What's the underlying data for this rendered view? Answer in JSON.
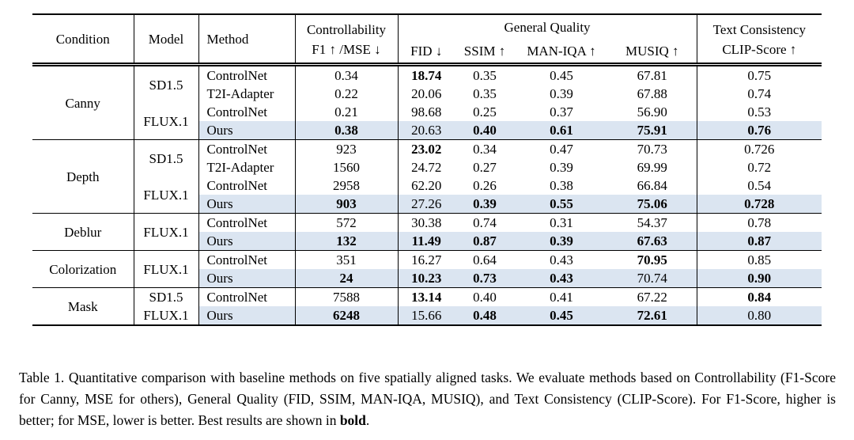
{
  "colors": {
    "background": "#ffffff",
    "text": "#000000",
    "rule": "#000000",
    "highlight_row": "#dbe5f1"
  },
  "table": {
    "headers": {
      "condition": "Condition",
      "model": "Model",
      "method": "Method",
      "controllability_line1": "Controllability",
      "controllability_line2": "F1 ↑ /MSE ↓",
      "general_quality": "General Quality",
      "fid": "FID ↓",
      "ssim": "SSIM ↑",
      "man_iqa": "MAN-IQA ↑",
      "musiq": "MUSIQ ↑",
      "text_consistency_line1": "Text Consistency",
      "text_consistency_line2": "CLIP-Score ↑"
    },
    "sections": [
      {
        "condition": "Canny",
        "rows": [
          {
            "model": "SD1.5",
            "model_rowspan": 2,
            "method": "ControlNet",
            "highlight": false,
            "values": [
              "0.34",
              "18.74",
              "0.35",
              "0.45",
              "67.81",
              "0.75"
            ],
            "bold": [
              1
            ]
          },
          {
            "method": "T2I-Adapter",
            "highlight": false,
            "values": [
              "0.22",
              "20.06",
              "0.35",
              "0.39",
              "67.88",
              "0.74"
            ],
            "bold": []
          },
          {
            "model": "FLUX.1",
            "model_rowspan": 2,
            "method": "ControlNet",
            "highlight": false,
            "values": [
              "0.21",
              "98.68",
              "0.25",
              "0.37",
              "56.90",
              "0.53"
            ],
            "bold": []
          },
          {
            "method": "Ours",
            "highlight": true,
            "values": [
              "0.38",
              "20.63",
              "0.40",
              "0.61",
              "75.91",
              "0.76"
            ],
            "bold": [
              0,
              2,
              3,
              4,
              5
            ]
          }
        ]
      },
      {
        "condition": "Depth",
        "rows": [
          {
            "model": "SD1.5",
            "model_rowspan": 2,
            "method": "ControlNet",
            "highlight": false,
            "values": [
              "923",
              "23.02",
              "0.34",
              "0.47",
              "70.73",
              "0.726"
            ],
            "bold": [
              1
            ]
          },
          {
            "method": "T2I-Adapter",
            "highlight": false,
            "values": [
              "1560",
              "24.72",
              "0.27",
              "0.39",
              "69.99",
              "0.72"
            ],
            "bold": []
          },
          {
            "model": "FLUX.1",
            "model_rowspan": 2,
            "method": "ControlNet",
            "highlight": false,
            "values": [
              "2958",
              "62.20",
              "0.26",
              "0.38",
              "66.84",
              "0.54"
            ],
            "bold": []
          },
          {
            "method": "Ours",
            "highlight": true,
            "values": [
              "903",
              "27.26",
              "0.39",
              "0.55",
              "75.06",
              "0.728"
            ],
            "bold": [
              0,
              2,
              3,
              4,
              5
            ]
          }
        ]
      },
      {
        "condition": "Deblur",
        "rows": [
          {
            "model": "FLUX.1",
            "model_rowspan": 2,
            "method": "ControlNet",
            "highlight": false,
            "values": [
              "572",
              "30.38",
              "0.74",
              "0.31",
              "54.37",
              "0.78"
            ],
            "bold": []
          },
          {
            "method": "Ours",
            "highlight": true,
            "values": [
              "132",
              "11.49",
              "0.87",
              "0.39",
              "67.63",
              "0.87"
            ],
            "bold": [
              0,
              1,
              2,
              3,
              4,
              5
            ]
          }
        ]
      },
      {
        "condition": "Colorization",
        "rows": [
          {
            "model": "FLUX.1",
            "model_rowspan": 2,
            "method": "ControlNet",
            "highlight": false,
            "values": [
              "351",
              "16.27",
              "0.64",
              "0.43",
              "70.95",
              "0.85"
            ],
            "bold": [
              4
            ]
          },
          {
            "method": "Ours",
            "highlight": true,
            "values": [
              "24",
              "10.23",
              "0.73",
              "0.43",
              "70.74",
              "0.90"
            ],
            "bold": [
              0,
              1,
              2,
              3,
              5
            ]
          }
        ]
      },
      {
        "condition": "Mask",
        "rows": [
          {
            "model": "SD1.5",
            "model_rowspan": 1,
            "method": "ControlNet",
            "highlight": false,
            "values": [
              "7588",
              "13.14",
              "0.40",
              "0.41",
              "67.22",
              "0.84"
            ],
            "bold": [
              1,
              5
            ]
          },
          {
            "model": "FLUX.1",
            "model_rowspan": 1,
            "method": "Ours",
            "highlight": true,
            "values": [
              "6248",
              "15.66",
              "0.48",
              "0.45",
              "72.61",
              "0.80"
            ],
            "bold": [
              0,
              2,
              3,
              4
            ]
          }
        ]
      }
    ]
  },
  "caption": {
    "text": "Table 1. Quantitative comparison with baseline methods on five spatially aligned tasks. We evaluate methods based on Controllability (F1-Score for Canny, MSE for others), General Quality (FID, SSIM, MAN-IQA, MUSIQ), and Text Consistency (CLIP-Score). For F1-Score, higher is better; for MSE, lower is better. Best results are shown in ",
    "bold_text": "bold",
    "suffix": "."
  }
}
